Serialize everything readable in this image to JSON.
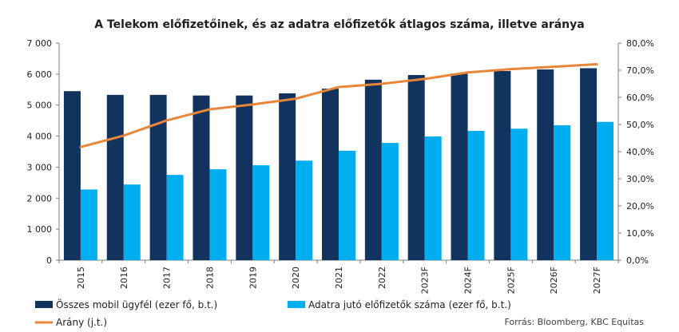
{
  "chart_data": {
    "type": "bar",
    "title": "A Telekom előfizetőinek, és az adatra előfizetők átlagos száma, illetve  aránya",
    "categories": [
      "2015",
      "2016",
      "2017",
      "2018",
      "2019",
      "2020",
      "2021",
      "2022",
      "2023F",
      "2024F",
      "2025F",
      "2026F",
      "2027F"
    ],
    "series": [
      {
        "name": "Összes mobil ügyfél (ezer fő, b.t.)",
        "type": "bar",
        "axis": "left",
        "color": "#12335e",
        "values": [
          5450,
          5330,
          5330,
          5310,
          5310,
          5380,
          5530,
          5820,
          5970,
          6020,
          6100,
          6150,
          6190
        ]
      },
      {
        "name": "Adatra jutó előfizetők száma (ezer fő, b.t.)",
        "type": "bar",
        "axis": "left",
        "color": "#00aeef",
        "values": [
          2280,
          2440,
          2750,
          2930,
          3060,
          3210,
          3530,
          3780,
          3990,
          4170,
          4240,
          4350,
          4460
        ]
      },
      {
        "name": "Arány (j.t.)",
        "type": "line",
        "axis": "right",
        "color": "#e8863a",
        "values": [
          41.7,
          45.9,
          51.5,
          55.6,
          57.4,
          59.5,
          63.8,
          65.0,
          66.8,
          69.2,
          70.4,
          71.3,
          72.2
        ]
      }
    ],
    "y_left": {
      "min": 0,
      "max": 7000,
      "step": 1000,
      "ticks": [
        "0",
        "1 000",
        "2 000",
        "3 000",
        "4 000",
        "5 000",
        "6 000",
        "7 000"
      ]
    },
    "y_right": {
      "min": 0,
      "max": 80,
      "step": 10,
      "ticks": [
        "0,0%",
        "10,0%",
        "20,0%",
        "30,0%",
        "40,0%",
        "50,0%",
        "60,0%",
        "70,0%",
        "80,0%"
      ]
    },
    "grid": false,
    "legend_position": "bottom",
    "source": "Forrás: Bloomberg, KBC Equitas"
  }
}
